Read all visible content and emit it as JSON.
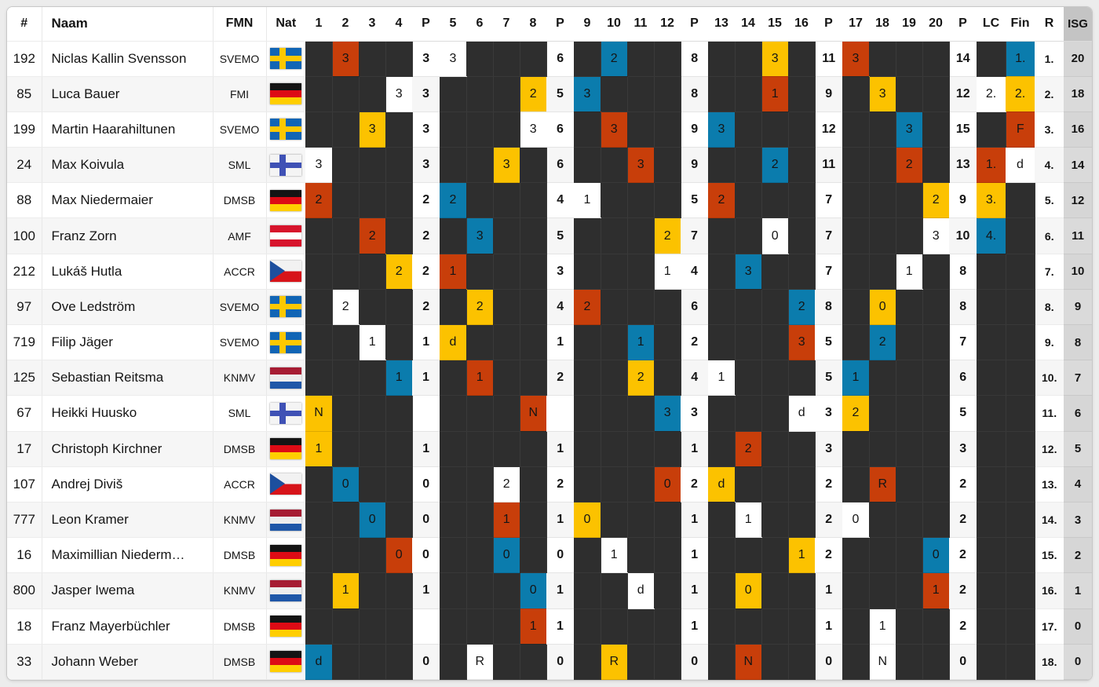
{
  "colors": {
    "page_bg": "#ececec",
    "dark": "#2e2e2e",
    "red": "#c83e0a",
    "yellow": "#fcc200",
    "blue": "#0b7cad",
    "white": "#ffffff",
    "isg_header": "#c4c4c4",
    "isg_cell": "#d6d6d6"
  },
  "header": {
    "num": "#",
    "name": "Naam",
    "fmn": "FMN",
    "nat": "Nat",
    "heats": [
      "1",
      "2",
      "3",
      "4",
      "5",
      "6",
      "7",
      "8",
      "9",
      "10",
      "11",
      "12",
      "13",
      "14",
      "15",
      "16",
      "17",
      "18",
      "19",
      "20"
    ],
    "p": "P",
    "lc": "LC",
    "fin": "Fin",
    "r": "R",
    "isg": "ISG"
  },
  "riders": [
    {
      "num": "192",
      "name": "Niclas Kallin Svensson",
      "fmn": "SVEMO",
      "flag": "swe",
      "heats": [
        null,
        {
          "v": "3",
          "c": "red"
        },
        null,
        null,
        {
          "v": "3",
          "c": "white"
        },
        null,
        null,
        null,
        null,
        {
          "v": "2",
          "c": "blue"
        },
        null,
        null,
        null,
        null,
        {
          "v": "3",
          "c": "yellow"
        },
        null,
        {
          "v": "3",
          "c": "red"
        },
        null,
        null,
        null
      ],
      "p": [
        "3",
        "6",
        "8",
        "11",
        "14"
      ],
      "lc": null,
      "fin": {
        "v": "1.",
        "c": "blue"
      },
      "r": "1.",
      "isg": "20"
    },
    {
      "num": "85",
      "name": "Luca Bauer",
      "fmn": "FMI",
      "flag": "ger",
      "heats": [
        null,
        null,
        null,
        {
          "v": "3",
          "c": "white"
        },
        null,
        null,
        null,
        {
          "v": "2",
          "c": "yellow"
        },
        {
          "v": "3",
          "c": "blue"
        },
        null,
        null,
        null,
        null,
        null,
        {
          "v": "1",
          "c": "red"
        },
        null,
        null,
        {
          "v": "3",
          "c": "yellow"
        },
        null,
        null
      ],
      "p": [
        "3",
        "5",
        "8",
        "9",
        "12"
      ],
      "lc": {
        "v": "2.",
        "c": "white"
      },
      "fin": {
        "v": "2.",
        "c": "yellow"
      },
      "r": "2.",
      "isg": "18"
    },
    {
      "num": "199",
      "name": "Martin Haarahiltunen",
      "fmn": "SVEMO",
      "flag": "swe",
      "heats": [
        null,
        null,
        {
          "v": "3",
          "c": "yellow"
        },
        null,
        null,
        null,
        null,
        {
          "v": "3",
          "c": "white"
        },
        null,
        {
          "v": "3",
          "c": "red"
        },
        null,
        null,
        {
          "v": "3",
          "c": "blue"
        },
        null,
        null,
        null,
        null,
        null,
        {
          "v": "3",
          "c": "blue"
        },
        null
      ],
      "p": [
        "3",
        "6",
        "9",
        "12",
        "15"
      ],
      "lc": null,
      "fin": {
        "v": "F",
        "c": "red"
      },
      "r": "3.",
      "isg": "16"
    },
    {
      "num": "24",
      "name": "Max Koivula",
      "fmn": "SML",
      "flag": "fin",
      "heats": [
        {
          "v": "3",
          "c": "white"
        },
        null,
        null,
        null,
        null,
        null,
        {
          "v": "3",
          "c": "yellow"
        },
        null,
        null,
        null,
        {
          "v": "3",
          "c": "red"
        },
        null,
        null,
        null,
        {
          "v": "2",
          "c": "blue"
        },
        null,
        null,
        null,
        {
          "v": "2",
          "c": "red"
        },
        null
      ],
      "p": [
        "3",
        "6",
        "9",
        "11",
        "13"
      ],
      "lc": {
        "v": "1.",
        "c": "red"
      },
      "fin": {
        "v": "d",
        "c": "white"
      },
      "r": "4.",
      "isg": "14"
    },
    {
      "num": "88",
      "name": "Max Niedermaier",
      "fmn": "DMSB",
      "flag": "ger",
      "heats": [
        {
          "v": "2",
          "c": "red"
        },
        null,
        null,
        null,
        {
          "v": "2",
          "c": "blue"
        },
        null,
        null,
        null,
        {
          "v": "1",
          "c": "white"
        },
        null,
        null,
        null,
        {
          "v": "2",
          "c": "red"
        },
        null,
        null,
        null,
        null,
        null,
        null,
        {
          "v": "2",
          "c": "yellow"
        }
      ],
      "p": [
        "2",
        "4",
        "5",
        "7",
        "9"
      ],
      "lc": {
        "v": "3.",
        "c": "yellow"
      },
      "fin": null,
      "r": "5.",
      "isg": "12"
    },
    {
      "num": "100",
      "name": "Franz Zorn",
      "fmn": "AMF",
      "flag": "aut",
      "heats": [
        null,
        null,
        {
          "v": "2",
          "c": "red"
        },
        null,
        null,
        {
          "v": "3",
          "c": "blue"
        },
        null,
        null,
        null,
        null,
        null,
        {
          "v": "2",
          "c": "yellow"
        },
        null,
        null,
        {
          "v": "0",
          "c": "white"
        },
        null,
        null,
        null,
        null,
        {
          "v": "3",
          "c": "white"
        }
      ],
      "p": [
        "2",
        "5",
        "7",
        "7",
        "10"
      ],
      "lc": {
        "v": "4.",
        "c": "blue"
      },
      "fin": null,
      "r": "6.",
      "isg": "11"
    },
    {
      "num": "212",
      "name": "Lukáš Hutla",
      "fmn": "ACCR",
      "flag": "cze",
      "heats": [
        null,
        null,
        null,
        {
          "v": "2",
          "c": "yellow"
        },
        {
          "v": "1",
          "c": "red"
        },
        null,
        null,
        null,
        null,
        null,
        null,
        {
          "v": "1",
          "c": "white"
        },
        null,
        {
          "v": "3",
          "c": "blue"
        },
        null,
        null,
        null,
        null,
        {
          "v": "1",
          "c": "white"
        },
        null
      ],
      "p": [
        "2",
        "3",
        "4",
        "7",
        "8"
      ],
      "lc": null,
      "fin": null,
      "r": "7.",
      "isg": "10"
    },
    {
      "num": "97",
      "name": "Ove Ledström",
      "fmn": "SVEMO",
      "flag": "swe",
      "heats": [
        null,
        {
          "v": "2",
          "c": "white"
        },
        null,
        null,
        null,
        {
          "v": "2",
          "c": "yellow"
        },
        null,
        null,
        {
          "v": "2",
          "c": "red"
        },
        null,
        null,
        null,
        null,
        null,
        null,
        {
          "v": "2",
          "c": "blue"
        },
        null,
        {
          "v": "0",
          "c": "yellow"
        },
        null,
        null
      ],
      "p": [
        "2",
        "4",
        "6",
        "8",
        "8"
      ],
      "lc": null,
      "fin": null,
      "r": "8.",
      "isg": "9"
    },
    {
      "num": "719",
      "name": "Filip Jäger",
      "fmn": "SVEMO",
      "flag": "swe",
      "heats": [
        null,
        null,
        {
          "v": "1",
          "c": "white"
        },
        null,
        {
          "v": "d",
          "c": "yellow"
        },
        null,
        null,
        null,
        null,
        null,
        {
          "v": "1",
          "c": "blue"
        },
        null,
        null,
        null,
        null,
        {
          "v": "3",
          "c": "red"
        },
        null,
        {
          "v": "2",
          "c": "blue"
        },
        null,
        null
      ],
      "p": [
        "1",
        "1",
        "2",
        "5",
        "7"
      ],
      "lc": null,
      "fin": null,
      "r": "9.",
      "isg": "8"
    },
    {
      "num": "125",
      "name": "Sebastian Reitsma",
      "fmn": "KNMV",
      "flag": "ned",
      "heats": [
        null,
        null,
        null,
        {
          "v": "1",
          "c": "blue"
        },
        null,
        {
          "v": "1",
          "c": "red"
        },
        null,
        null,
        null,
        null,
        {
          "v": "2",
          "c": "yellow"
        },
        null,
        {
          "v": "1",
          "c": "white"
        },
        null,
        null,
        null,
        {
          "v": "1",
          "c": "blue"
        },
        null,
        null,
        null
      ],
      "p": [
        "1",
        "2",
        "4",
        "5",
        "6"
      ],
      "lc": null,
      "fin": null,
      "r": "10.",
      "isg": "7"
    },
    {
      "num": "67",
      "name": "Heikki Huusko",
      "fmn": "SML",
      "flag": "fin",
      "heats": [
        {
          "v": "N",
          "c": "yellow"
        },
        null,
        null,
        null,
        null,
        null,
        null,
        {
          "v": "N",
          "c": "red"
        },
        null,
        null,
        null,
        {
          "v": "3",
          "c": "blue"
        },
        null,
        null,
        null,
        {
          "v": "d",
          "c": "white"
        },
        {
          "v": "2",
          "c": "yellow"
        },
        null,
        null,
        null
      ],
      "p": [
        "",
        "",
        "3",
        "3",
        "5"
      ],
      "lc": null,
      "fin": null,
      "r": "11.",
      "isg": "6"
    },
    {
      "num": "17",
      "name": "Christoph Kirchner",
      "fmn": "DMSB",
      "flag": "ger",
      "heats": [
        {
          "v": "1",
          "c": "yellow"
        },
        null,
        null,
        null,
        null,
        null,
        null,
        null,
        null,
        null,
        null,
        null,
        null,
        {
          "v": "2",
          "c": "red"
        },
        null,
        null,
        null,
        null,
        null,
        null
      ],
      "p": [
        "1",
        "1",
        "1",
        "3",
        "3"
      ],
      "lc": null,
      "fin": null,
      "r": "12.",
      "isg": "5"
    },
    {
      "num": "107",
      "name": "Andrej Diviš",
      "fmn": "ACCR",
      "flag": "cze",
      "heats": [
        null,
        {
          "v": "0",
          "c": "blue"
        },
        null,
        null,
        null,
        null,
        {
          "v": "2",
          "c": "white"
        },
        null,
        null,
        null,
        null,
        {
          "v": "0",
          "c": "red"
        },
        {
          "v": "d",
          "c": "yellow"
        },
        null,
        null,
        null,
        null,
        {
          "v": "R",
          "c": "red"
        },
        null,
        null
      ],
      "p": [
        "0",
        "2",
        "2",
        "2",
        "2"
      ],
      "lc": null,
      "fin": null,
      "r": "13.",
      "isg": "4"
    },
    {
      "num": "777",
      "name": "Leon Kramer",
      "fmn": "KNMV",
      "flag": "ned",
      "heats": [
        null,
        null,
        {
          "v": "0",
          "c": "blue"
        },
        null,
        null,
        null,
        {
          "v": "1",
          "c": "red"
        },
        null,
        {
          "v": "0",
          "c": "yellow"
        },
        null,
        null,
        null,
        null,
        {
          "v": "1",
          "c": "white"
        },
        null,
        null,
        {
          "v": "0",
          "c": "white"
        },
        null,
        null,
        null
      ],
      "p": [
        "0",
        "1",
        "1",
        "2",
        "2"
      ],
      "lc": null,
      "fin": null,
      "r": "14.",
      "isg": "3"
    },
    {
      "num": "16",
      "name": "Maximillian Niederm…",
      "fmn": "DMSB",
      "flag": "ger",
      "heats": [
        null,
        null,
        null,
        {
          "v": "0",
          "c": "red"
        },
        null,
        null,
        {
          "v": "0",
          "c": "blue"
        },
        null,
        null,
        {
          "v": "1",
          "c": "white"
        },
        null,
        null,
        null,
        null,
        null,
        {
          "v": "1",
          "c": "yellow"
        },
        null,
        null,
        null,
        {
          "v": "0",
          "c": "blue"
        }
      ],
      "p": [
        "0",
        "0",
        "1",
        "2",
        "2"
      ],
      "lc": null,
      "fin": null,
      "r": "15.",
      "isg": "2"
    },
    {
      "num": "800",
      "name": "Jasper Iwema",
      "fmn": "KNMV",
      "flag": "ned",
      "heats": [
        null,
        {
          "v": "1",
          "c": "yellow"
        },
        null,
        null,
        null,
        null,
        null,
        {
          "v": "0",
          "c": "blue"
        },
        null,
        null,
        {
          "v": "d",
          "c": "white"
        },
        null,
        null,
        {
          "v": "0",
          "c": "yellow"
        },
        null,
        null,
        null,
        null,
        null,
        {
          "v": "1",
          "c": "red"
        }
      ],
      "p": [
        "1",
        "1",
        "1",
        "1",
        "2"
      ],
      "lc": null,
      "fin": null,
      "r": "16.",
      "isg": "1"
    },
    {
      "num": "18",
      "name": "Franz Mayerbüchler",
      "fmn": "DMSB",
      "flag": "ger",
      "heats": [
        null,
        null,
        null,
        null,
        null,
        null,
        null,
        {
          "v": "1",
          "c": "red"
        },
        null,
        null,
        null,
        null,
        null,
        null,
        null,
        null,
        null,
        {
          "v": "1",
          "c": "white"
        },
        null,
        null
      ],
      "p": [
        "",
        "1",
        "1",
        "1",
        "2"
      ],
      "lc": null,
      "fin": null,
      "r": "17.",
      "isg": "0"
    },
    {
      "num": "33",
      "name": "Johann Weber",
      "fmn": "DMSB",
      "flag": "ger",
      "heats": [
        {
          "v": "d",
          "c": "blue"
        },
        null,
        null,
        null,
        null,
        {
          "v": "R",
          "c": "white"
        },
        null,
        null,
        null,
        {
          "v": "R",
          "c": "yellow"
        },
        null,
        null,
        null,
        {
          "v": "N",
          "c": "red"
        },
        null,
        null,
        null,
        {
          "v": "N",
          "c": "white"
        },
        null,
        null
      ],
      "p": [
        "0",
        "0",
        "0",
        "0",
        "0"
      ],
      "lc": null,
      "fin": null,
      "r": "18.",
      "isg": "0"
    }
  ]
}
